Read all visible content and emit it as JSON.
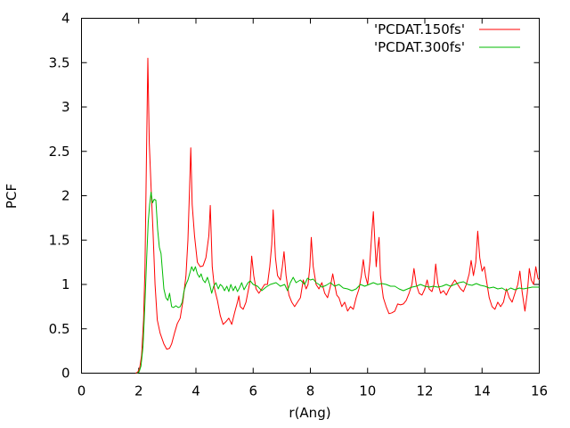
{
  "chart_data": {
    "type": "line",
    "xlabel": "r(Ang)",
    "ylabel": "PCF",
    "xlim": [
      0,
      16
    ],
    "ylim": [
      0,
      4
    ],
    "x_ticks": [
      0,
      2,
      4,
      6,
      8,
      10,
      12,
      14,
      16
    ],
    "y_ticks": [
      0,
      0.5,
      1,
      1.5,
      2,
      2.5,
      3,
      3.5,
      4
    ],
    "x_tick_labels": [
      "0",
      "2",
      "4",
      "6",
      "8",
      "10",
      "12",
      "14",
      "16"
    ],
    "y_tick_labels": [
      "0",
      "0.5",
      "1",
      "1.5",
      "2",
      "2.5",
      "3",
      "3.5",
      "4"
    ],
    "grid": false,
    "legend_position": "top-right",
    "series": [
      {
        "name": "'PCDAT.150fs'",
        "color": "#ff0000",
        "points": [
          [
            1.9,
            0.0
          ],
          [
            1.96,
            0.01
          ],
          [
            2.03,
            0.05
          ],
          [
            2.1,
            0.2
          ],
          [
            2.17,
            0.6
          ],
          [
            2.22,
            1.2
          ],
          [
            2.27,
            2.4
          ],
          [
            2.32,
            3.55
          ],
          [
            2.37,
            2.6
          ],
          [
            2.43,
            2.1
          ],
          [
            2.5,
            1.6
          ],
          [
            2.57,
            1.0
          ],
          [
            2.65,
            0.6
          ],
          [
            2.75,
            0.45
          ],
          [
            2.88,
            0.33
          ],
          [
            2.98,
            0.27
          ],
          [
            3.08,
            0.28
          ],
          [
            3.15,
            0.33
          ],
          [
            3.25,
            0.45
          ],
          [
            3.35,
            0.56
          ],
          [
            3.45,
            0.62
          ],
          [
            3.55,
            0.82
          ],
          [
            3.65,
            1.1
          ],
          [
            3.72,
            1.5
          ],
          [
            3.78,
            2.1
          ],
          [
            3.82,
            2.54
          ],
          [
            3.87,
            1.9
          ],
          [
            3.95,
            1.55
          ],
          [
            4.05,
            1.25
          ],
          [
            4.15,
            1.2
          ],
          [
            4.25,
            1.21
          ],
          [
            4.35,
            1.3
          ],
          [
            4.45,
            1.55
          ],
          [
            4.5,
            1.89
          ],
          [
            4.57,
            1.2
          ],
          [
            4.65,
            0.95
          ],
          [
            4.75,
            0.82
          ],
          [
            4.85,
            0.65
          ],
          [
            4.95,
            0.55
          ],
          [
            5.05,
            0.58
          ],
          [
            5.15,
            0.62
          ],
          [
            5.25,
            0.55
          ],
          [
            5.35,
            0.68
          ],
          [
            5.45,
            0.8
          ],
          [
            5.5,
            0.87
          ],
          [
            5.55,
            0.75
          ],
          [
            5.65,
            0.72
          ],
          [
            5.75,
            0.8
          ],
          [
            5.82,
            0.92
          ],
          [
            5.9,
            1.05
          ],
          [
            5.95,
            1.32
          ],
          [
            6.02,
            1.1
          ],
          [
            6.1,
            0.95
          ],
          [
            6.2,
            0.9
          ],
          [
            6.3,
            0.95
          ],
          [
            6.4,
            1.0
          ],
          [
            6.5,
            1.0
          ],
          [
            6.58,
            1.2
          ],
          [
            6.65,
            1.45
          ],
          [
            6.7,
            1.84
          ],
          [
            6.78,
            1.3
          ],
          [
            6.85,
            1.1
          ],
          [
            6.95,
            1.05
          ],
          [
            7.02,
            1.2
          ],
          [
            7.08,
            1.37
          ],
          [
            7.15,
            1.1
          ],
          [
            7.25,
            0.88
          ],
          [
            7.35,
            0.8
          ],
          [
            7.45,
            0.75
          ],
          [
            7.55,
            0.8
          ],
          [
            7.65,
            0.85
          ],
          [
            7.75,
            1.05
          ],
          [
            7.85,
            0.95
          ],
          [
            7.92,
            1.0
          ],
          [
            7.98,
            1.2
          ],
          [
            8.03,
            1.53
          ],
          [
            8.1,
            1.2
          ],
          [
            8.2,
            1.0
          ],
          [
            8.3,
            0.95
          ],
          [
            8.4,
            1.02
          ],
          [
            8.5,
            0.9
          ],
          [
            8.6,
            0.85
          ],
          [
            8.7,
            0.98
          ],
          [
            8.78,
            1.12
          ],
          [
            8.85,
            1.0
          ],
          [
            8.92,
            0.88
          ],
          [
            9.0,
            0.85
          ],
          [
            9.1,
            0.75
          ],
          [
            9.2,
            0.8
          ],
          [
            9.3,
            0.7
          ],
          [
            9.4,
            0.75
          ],
          [
            9.5,
            0.72
          ],
          [
            9.6,
            0.85
          ],
          [
            9.7,
            0.95
          ],
          [
            9.78,
            1.1
          ],
          [
            9.85,
            1.28
          ],
          [
            9.92,
            1.1
          ],
          [
            10.0,
            1.0
          ],
          [
            10.08,
            1.25
          ],
          [
            10.15,
            1.6
          ],
          [
            10.2,
            1.82
          ],
          [
            10.25,
            1.5
          ],
          [
            10.3,
            1.2
          ],
          [
            10.35,
            1.4
          ],
          [
            10.4,
            1.53
          ],
          [
            10.45,
            1.1
          ],
          [
            10.55,
            0.85
          ],
          [
            10.65,
            0.75
          ],
          [
            10.75,
            0.67
          ],
          [
            10.85,
            0.68
          ],
          [
            10.95,
            0.7
          ],
          [
            11.05,
            0.78
          ],
          [
            11.15,
            0.77
          ],
          [
            11.25,
            0.78
          ],
          [
            11.35,
            0.82
          ],
          [
            11.45,
            0.9
          ],
          [
            11.55,
            1.0
          ],
          [
            11.62,
            1.18
          ],
          [
            11.7,
            1.0
          ],
          [
            11.8,
            0.9
          ],
          [
            11.9,
            0.88
          ],
          [
            12.0,
            0.95
          ],
          [
            12.08,
            1.05
          ],
          [
            12.15,
            0.95
          ],
          [
            12.25,
            0.92
          ],
          [
            12.32,
            1.0
          ],
          [
            12.38,
            1.23
          ],
          [
            12.45,
            1.02
          ],
          [
            12.55,
            0.9
          ],
          [
            12.65,
            0.93
          ],
          [
            12.75,
            0.88
          ],
          [
            12.85,
            0.95
          ],
          [
            12.95,
            1.0
          ],
          [
            13.05,
            1.05
          ],
          [
            13.15,
            1.0
          ],
          [
            13.25,
            0.95
          ],
          [
            13.35,
            0.92
          ],
          [
            13.45,
            1.0
          ],
          [
            13.55,
            1.12
          ],
          [
            13.62,
            1.27
          ],
          [
            13.7,
            1.1
          ],
          [
            13.78,
            1.25
          ],
          [
            13.85,
            1.6
          ],
          [
            13.92,
            1.3
          ],
          [
            14.0,
            1.15
          ],
          [
            14.08,
            1.2
          ],
          [
            14.15,
            1.05
          ],
          [
            14.25,
            0.85
          ],
          [
            14.35,
            0.75
          ],
          [
            14.45,
            0.72
          ],
          [
            14.55,
            0.8
          ],
          [
            14.65,
            0.75
          ],
          [
            14.75,
            0.8
          ],
          [
            14.85,
            0.95
          ],
          [
            14.95,
            0.85
          ],
          [
            15.05,
            0.8
          ],
          [
            15.15,
            0.9
          ],
          [
            15.25,
            1.0
          ],
          [
            15.32,
            1.15
          ],
          [
            15.4,
            0.92
          ],
          [
            15.5,
            0.7
          ],
          [
            15.58,
            0.9
          ],
          [
            15.65,
            1.18
          ],
          [
            15.72,
            1.05
          ],
          [
            15.8,
            1.0
          ],
          [
            15.88,
            1.2
          ],
          [
            15.95,
            1.07
          ],
          [
            16.0,
            1.05
          ]
        ]
      },
      {
        "name": "'PCDAT.300fs'",
        "color": "#00bb00",
        "points": [
          [
            1.95,
            0.0
          ],
          [
            2.02,
            0.02
          ],
          [
            2.08,
            0.08
          ],
          [
            2.15,
            0.3
          ],
          [
            2.22,
            0.8
          ],
          [
            2.28,
            1.3
          ],
          [
            2.33,
            1.7
          ],
          [
            2.38,
            1.9
          ],
          [
            2.43,
            2.04
          ],
          [
            2.48,
            1.92
          ],
          [
            2.54,
            1.96
          ],
          [
            2.6,
            1.95
          ],
          [
            2.66,
            1.62
          ],
          [
            2.72,
            1.42
          ],
          [
            2.78,
            1.35
          ],
          [
            2.83,
            1.15
          ],
          [
            2.88,
            0.95
          ],
          [
            2.95,
            0.85
          ],
          [
            3.02,
            0.82
          ],
          [
            3.08,
            0.9
          ],
          [
            3.15,
            0.75
          ],
          [
            3.22,
            0.74
          ],
          [
            3.3,
            0.76
          ],
          [
            3.38,
            0.74
          ],
          [
            3.45,
            0.75
          ],
          [
            3.52,
            0.8
          ],
          [
            3.58,
            0.92
          ],
          [
            3.65,
            1.0
          ],
          [
            3.72,
            1.05
          ],
          [
            3.78,
            1.12
          ],
          [
            3.85,
            1.2
          ],
          [
            3.92,
            1.15
          ],
          [
            3.98,
            1.2
          ],
          [
            4.05,
            1.12
          ],
          [
            4.12,
            1.08
          ],
          [
            4.18,
            1.12
          ],
          [
            4.25,
            1.05
          ],
          [
            4.32,
            1.02
          ],
          [
            4.4,
            1.08
          ],
          [
            4.48,
            1.0
          ],
          [
            4.55,
            0.9
          ],
          [
            4.62,
            0.98
          ],
          [
            4.7,
            1.02
          ],
          [
            4.78,
            0.95
          ],
          [
            4.85,
            1.0
          ],
          [
            4.92,
            0.98
          ],
          [
            5.0,
            0.93
          ],
          [
            5.08,
            0.98
          ],
          [
            5.15,
            0.92
          ],
          [
            5.22,
            1.0
          ],
          [
            5.3,
            0.93
          ],
          [
            5.38,
            0.98
          ],
          [
            5.45,
            0.92
          ],
          [
            5.52,
            0.96
          ],
          [
            5.6,
            1.02
          ],
          [
            5.68,
            0.94
          ],
          [
            5.75,
            0.98
          ],
          [
            5.82,
            1.02
          ],
          [
            5.9,
            1.04
          ],
          [
            6.0,
            1.0
          ],
          [
            6.15,
            0.98
          ],
          [
            6.3,
            0.93
          ],
          [
            6.45,
            0.97
          ],
          [
            6.6,
            1.0
          ],
          [
            6.8,
            1.02
          ],
          [
            6.95,
            0.98
          ],
          [
            7.1,
            1.0
          ],
          [
            7.2,
            0.93
          ],
          [
            7.3,
            1.02
          ],
          [
            7.4,
            1.08
          ],
          [
            7.5,
            1.02
          ],
          [
            7.65,
            1.05
          ],
          [
            7.8,
            1.0
          ],
          [
            7.9,
            1.07
          ],
          [
            8.0,
            1.05
          ],
          [
            8.1,
            1.06
          ],
          [
            8.2,
            1.02
          ],
          [
            8.3,
            1.0
          ],
          [
            8.4,
            0.97
          ],
          [
            8.55,
            0.99
          ],
          [
            8.7,
            1.02
          ],
          [
            8.85,
            0.98
          ],
          [
            9.0,
            1.0
          ],
          [
            9.15,
            0.96
          ],
          [
            9.3,
            0.95
          ],
          [
            9.45,
            0.93
          ],
          [
            9.6,
            0.95
          ],
          [
            9.75,
            1.0
          ],
          [
            9.9,
            0.98
          ],
          [
            10.05,
            1.0
          ],
          [
            10.2,
            1.02
          ],
          [
            10.35,
            1.0
          ],
          [
            10.5,
            1.01
          ],
          [
            10.65,
            1.0
          ],
          [
            10.8,
            0.98
          ],
          [
            10.95,
            0.98
          ],
          [
            11.1,
            0.95
          ],
          [
            11.25,
            0.93
          ],
          [
            11.4,
            0.95
          ],
          [
            11.55,
            0.97
          ],
          [
            11.7,
            0.98
          ],
          [
            11.85,
            1.0
          ],
          [
            12.0,
            0.98
          ],
          [
            12.15,
            0.97
          ],
          [
            12.3,
            0.98
          ],
          [
            12.45,
            0.97
          ],
          [
            12.6,
            0.98
          ],
          [
            12.75,
            1.0
          ],
          [
            12.9,
            0.98
          ],
          [
            13.05,
            1.0
          ],
          [
            13.2,
            1.02
          ],
          [
            13.35,
            1.03
          ],
          [
            13.5,
            1.0
          ],
          [
            13.65,
            0.99
          ],
          [
            13.8,
            1.01
          ],
          [
            13.95,
            0.99
          ],
          [
            14.1,
            0.98
          ],
          [
            14.25,
            0.96
          ],
          [
            14.4,
            0.97
          ],
          [
            14.55,
            0.95
          ],
          [
            14.7,
            0.96
          ],
          [
            14.85,
            0.93
          ],
          [
            15.0,
            0.96
          ],
          [
            15.15,
            0.94
          ],
          [
            15.3,
            0.96
          ],
          [
            15.45,
            0.95
          ],
          [
            15.6,
            0.96
          ],
          [
            15.75,
            0.97
          ],
          [
            15.9,
            0.97
          ],
          [
            16.0,
            0.97
          ]
        ]
      }
    ]
  }
}
